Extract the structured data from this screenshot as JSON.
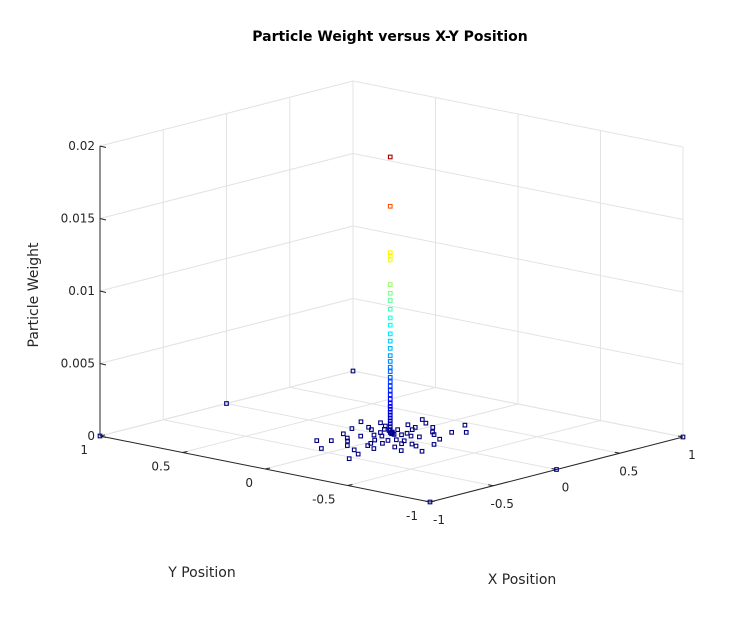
{
  "chart_data": {
    "type": "scatter",
    "title": "Particle Weight versus X-Y Position",
    "xlabel": "X Position",
    "ylabel": "Y Position",
    "zlabel": "Particle Weight",
    "xlim": [
      -1,
      1
    ],
    "ylim": [
      -1,
      1
    ],
    "zlim": [
      0,
      0.02
    ],
    "xticks": [
      -1,
      -0.5,
      0,
      0.5,
      1
    ],
    "yticks": [
      -1,
      -0.5,
      0,
      0.5,
      1
    ],
    "zticks": [
      0,
      0.005,
      0.01,
      0.015,
      0.02
    ],
    "xtick_labels": [
      "-1",
      "-0.5",
      "0",
      "0.5",
      "1"
    ],
    "ytick_labels": [
      "-1",
      "-0.5",
      "0",
      "0.5",
      "1"
    ],
    "ztick_labels": [
      "0",
      "0.005",
      "0.01",
      "0.015",
      "0.02"
    ],
    "grid": true,
    "colormap": "jet",
    "points": [
      {
        "x": -0.01,
        "y": 0.0,
        "z": 0.0193
      },
      {
        "x": -0.01,
        "y": 0.0,
        "z": 0.0159
      },
      {
        "x": -0.01,
        "y": 0.0,
        "z": 0.0127
      },
      {
        "x": -0.01,
        "y": 0.0,
        "z": 0.0125
      },
      {
        "x": -0.01,
        "y": 0.0,
        "z": 0.0122
      },
      {
        "x": -0.01,
        "y": 0.0,
        "z": 0.0105
      },
      {
        "x": -0.01,
        "y": 0.0,
        "z": 0.0099
      },
      {
        "x": -0.01,
        "y": 0.0,
        "z": 0.0094
      },
      {
        "x": -0.01,
        "y": 0.0,
        "z": 0.0088
      },
      {
        "x": -0.01,
        "y": 0.0,
        "z": 0.0082
      },
      {
        "x": -0.01,
        "y": 0.0,
        "z": 0.0077
      },
      {
        "x": -0.01,
        "y": 0.0,
        "z": 0.0071
      },
      {
        "x": -0.01,
        "y": 0.0,
        "z": 0.0066
      },
      {
        "x": -0.01,
        "y": 0.0,
        "z": 0.0061
      },
      {
        "x": -0.01,
        "y": 0.0,
        "z": 0.0056
      },
      {
        "x": -0.01,
        "y": 0.0,
        "z": 0.0052
      },
      {
        "x": -0.01,
        "y": 0.0,
        "z": 0.0048
      },
      {
        "x": -0.01,
        "y": 0.0,
        "z": 0.0045
      },
      {
        "x": -0.01,
        "y": 0.0,
        "z": 0.0041
      },
      {
        "x": -0.01,
        "y": 0.0,
        "z": 0.0038
      },
      {
        "x": -0.01,
        "y": 0.0,
        "z": 0.0035
      },
      {
        "x": -0.01,
        "y": 0.0,
        "z": 0.0032
      },
      {
        "x": -0.01,
        "y": 0.0,
        "z": 0.0029
      },
      {
        "x": -0.01,
        "y": 0.0,
        "z": 0.0026
      },
      {
        "x": -0.01,
        "y": 0.0,
        "z": 0.0023
      },
      {
        "x": -0.01,
        "y": 0.0,
        "z": 0.0021
      },
      {
        "x": -0.01,
        "y": 0.0,
        "z": 0.0019
      },
      {
        "x": -0.01,
        "y": 0.0,
        "z": 0.0017
      },
      {
        "x": -0.01,
        "y": 0.0,
        "z": 0.0015
      },
      {
        "x": -0.01,
        "y": 0.0,
        "z": 0.0013
      },
      {
        "x": -0.01,
        "y": 0.0,
        "z": 0.0011
      },
      {
        "x": -0.01,
        "y": 0.0,
        "z": 0.0009
      },
      {
        "x": -0.01,
        "y": 0.0,
        "z": 0.0007
      },
      {
        "x": -0.01,
        "y": 0.0,
        "z": 0.0005
      },
      {
        "x": -0.01,
        "y": 0.0,
        "z": 0.0003
      },
      {
        "x": 0.0,
        "y": 0.0,
        "z": 0.0002
      },
      {
        "x": 0.02,
        "y": 0.0,
        "z": 0.0001
      },
      {
        "x": -0.05,
        "y": 0.02,
        "z": 0.0001
      },
      {
        "x": 0.04,
        "y": -0.03,
        "z": 0.0001
      },
      {
        "x": -0.08,
        "y": -0.04,
        "z": 0.0
      },
      {
        "x": 0.07,
        "y": 0.05,
        "z": 0.0
      },
      {
        "x": 0.11,
        "y": -0.01,
        "z": 0.0
      },
      {
        "x": -0.12,
        "y": 0.01,
        "z": 0.0
      },
      {
        "x": 0.03,
        "y": 0.09,
        "z": 0.0
      },
      {
        "x": -0.03,
        "y": -0.1,
        "z": 0.0
      },
      {
        "x": 0.14,
        "y": 0.07,
        "z": 0.0
      },
      {
        "x": -0.15,
        "y": -0.06,
        "z": 0.0
      },
      {
        "x": 0.09,
        "y": -0.1,
        "z": 0.0
      },
      {
        "x": -0.1,
        "y": 0.11,
        "z": 0.0
      },
      {
        "x": 0.19,
        "y": 0.02,
        "z": 0.0
      },
      {
        "x": -0.19,
        "y": -0.02,
        "z": 0.0
      },
      {
        "x": 0.05,
        "y": 0.16,
        "z": 0.0
      },
      {
        "x": -0.06,
        "y": -0.17,
        "z": 0.0
      },
      {
        "x": 0.22,
        "y": -0.08,
        "z": 0.0
      },
      {
        "x": -0.23,
        "y": 0.09,
        "z": 0.0
      },
      {
        "x": 0.16,
        "y": 0.16,
        "z": 0.0
      },
      {
        "x": -0.17,
        "y": -0.15,
        "z": 0.0
      },
      {
        "x": 0.26,
        "y": 0.1,
        "z": 0.0
      },
      {
        "x": -0.27,
        "y": -0.1,
        "z": 0.0
      },
      {
        "x": 0.12,
        "y": -0.2,
        "z": 0.0
      },
      {
        "x": -0.12,
        "y": 0.2,
        "z": 0.0
      },
      {
        "x": 0.3,
        "y": -0.02,
        "z": 0.0
      },
      {
        "x": -0.31,
        "y": 0.03,
        "z": 0.0
      },
      {
        "x": 0.0,
        "y": 0.24,
        "z": 0.0
      },
      {
        "x": 0.01,
        "y": -0.25,
        "z": 0.0
      },
      {
        "x": 0.2,
        "y": 0.22,
        "z": 0.0
      },
      {
        "x": -0.21,
        "y": -0.22,
        "z": 0.0
      },
      {
        "x": 0.35,
        "y": 0.06,
        "z": 0.0
      },
      {
        "x": -0.36,
        "y": -0.05,
        "z": 0.0
      },
      {
        "x": 0.28,
        "y": -0.15,
        "z": 0.0
      },
      {
        "x": -0.28,
        "y": 0.15,
        "z": 0.0
      },
      {
        "x": 0.06,
        "y": 0.04,
        "z": 0.0
      },
      {
        "x": -0.04,
        "y": -0.06,
        "z": 0.0
      },
      {
        "x": 0.1,
        "y": 0.12,
        "z": 0.0
      },
      {
        "x": -0.09,
        "y": -0.13,
        "z": 0.0
      },
      {
        "x": 0.18,
        "y": -0.12,
        "z": 0.0
      },
      {
        "x": -0.18,
        "y": 0.13,
        "z": 0.0
      },
      {
        "x": 0.24,
        "y": 0.04,
        "z": 0.0
      },
      {
        "x": -0.24,
        "y": -0.04,
        "z": 0.0
      },
      {
        "x": 0.08,
        "y": 0.2,
        "z": 0.0
      },
      {
        "x": -0.08,
        "y": -0.21,
        "z": 0.0
      },
      {
        "x": 0.4,
        "y": 0.12,
        "z": 0.0
      },
      {
        "x": -0.42,
        "y": -0.12,
        "z": 0.0
      },
      {
        "x": 0.33,
        "y": -0.2,
        "z": 0.0
      },
      {
        "x": -0.33,
        "y": 0.2,
        "z": 0.0
      },
      {
        "x": -0.53,
        "y": -0.15,
        "z": 0.0
      },
      {
        "x": 0.45,
        "y": -0.1,
        "z": 0.0
      },
      {
        "x": -0.45,
        "y": 0.08,
        "z": 0.0
      },
      {
        "x": 0.15,
        "y": 0.3,
        "z": 0.0
      },
      {
        "x": -0.15,
        "y": -0.3,
        "z": 0.0
      },
      {
        "x": 0.05,
        "y": -0.08,
        "z": 0.0001
      },
      {
        "x": -0.06,
        "y": 0.06,
        "z": 0.0001
      },
      {
        "x": 0.02,
        "y": 0.03,
        "z": 0.0003
      },
      {
        "x": -0.02,
        "y": -0.02,
        "z": 0.0004
      },
      {
        "x": 1.0,
        "y": 1.0,
        "z": 0.0
      },
      {
        "x": -1.0,
        "y": -1.0,
        "z": 0.0
      },
      {
        "x": 1.0,
        "y": -1.0,
        "z": 0.0
      },
      {
        "x": -1.0,
        "y": 1.0,
        "z": 0.0
      },
      {
        "x": 0.0,
        "y": -1.0,
        "z": 0.0
      },
      {
        "x": 0.0,
        "y": 1.0,
        "z": 0.0
      }
    ]
  }
}
